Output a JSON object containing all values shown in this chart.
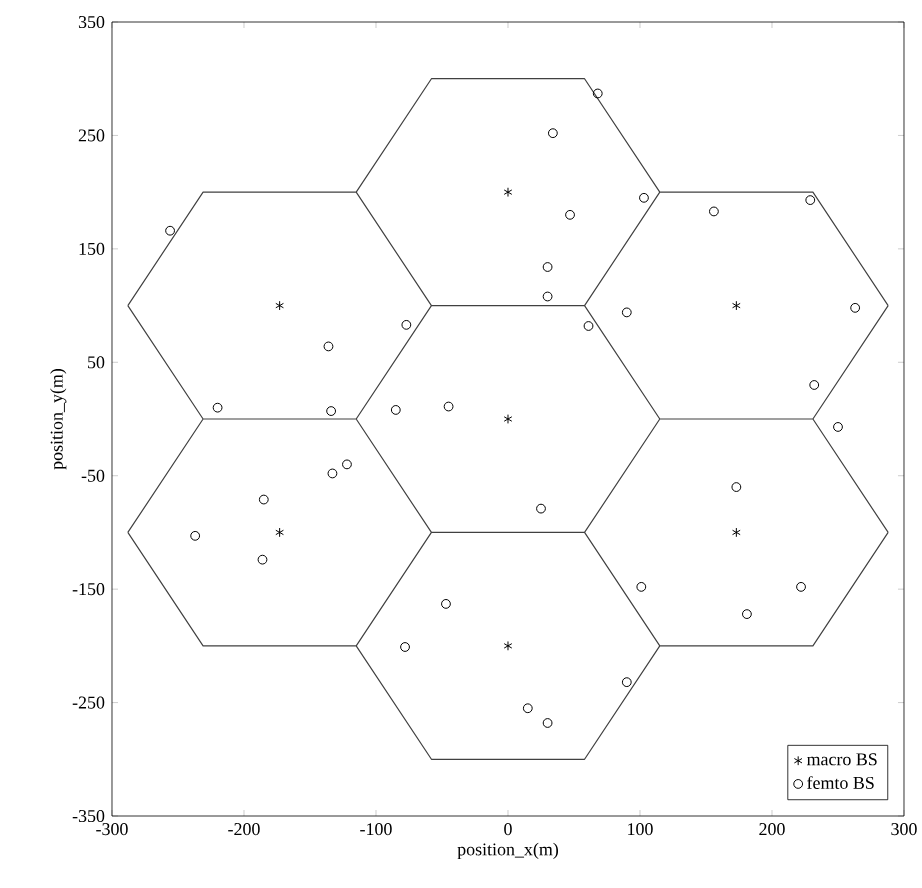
{
  "chart_data": {
    "type": "scatter",
    "xlabel": "position_x(m)",
    "ylabel": "position_y(m)",
    "xlim": [
      -300,
      300
    ],
    "ylim": [
      -350,
      350
    ],
    "xticks": [
      -300,
      -200,
      -100,
      0,
      100,
      200,
      300
    ],
    "yticks": [
      -350,
      -250,
      -150,
      -50,
      50,
      150,
      250,
      350
    ],
    "legend": "bottom right",
    "series": [
      {
        "type": "line",
        "marker": "none",
        "color": "#404040",
        "x": [
          115,
          58,
          -58,
          -115,
          null,
          -115,
          -58,
          58,
          115,
          null,
          115,
          58,
          -58,
          -115,
          null,
          -115,
          -58,
          58,
          115,
          null,
          115,
          58,
          -58,
          -115,
          null,
          -115,
          -58,
          58,
          115,
          null,
          288,
          231,
          115,
          58,
          null,
          58,
          115,
          231,
          288,
          null,
          288,
          231,
          115,
          58,
          null,
          58,
          115,
          231,
          288,
          null,
          -58,
          -115,
          -231,
          -288,
          null,
          -288,
          -231,
          -115,
          -58,
          null,
          -58,
          -115,
          -231,
          -288,
          null,
          -288,
          -231,
          -115,
          -58
        ],
        "values": [
          0,
          100,
          100,
          0,
          null,
          0,
          -100,
          -100,
          0,
          null,
          200,
          300,
          300,
          200,
          null,
          200,
          100,
          100,
          200,
          null,
          -200,
          -100,
          -100,
          -200,
          null,
          -200,
          -300,
          -300,
          -200,
          null,
          100,
          200,
          200,
          100,
          null,
          100,
          0,
          0,
          100,
          null,
          -100,
          0,
          0,
          -100,
          null,
          -100,
          -200,
          -200,
          -100,
          null,
          100,
          200,
          200,
          100,
          null,
          100,
          0,
          0,
          100,
          null,
          -100,
          0,
          0,
          -100,
          null,
          -100,
          -200,
          -200,
          -100
        ]
      },
      {
        "marker": "cross",
        "name": "macro BS",
        "color": "#000000",
        "x": [
          0,
          0,
          0,
          173,
          173,
          -173,
          -173
        ],
        "values": [
          0,
          200,
          -200,
          100,
          -100,
          100,
          -100
        ]
      },
      {
        "marker": "circle",
        "name": "femto BS",
        "color": "#000000",
        "x": [
          68,
          34,
          47,
          30,
          30,
          103,
          156,
          229,
          90,
          61,
          263,
          232,
          250,
          -256,
          -77,
          -136,
          -220,
          -134,
          -85,
          -45,
          -122,
          -133,
          -185,
          -237,
          -186,
          -47,
          -78,
          25,
          173,
          222,
          101,
          181,
          90,
          15,
          30
        ],
        "values": [
          287,
          252,
          180,
          134,
          108,
          195,
          183,
          193,
          94,
          82,
          98,
          30,
          -7,
          166,
          83,
          64,
          10,
          7,
          8,
          11,
          -40,
          -48,
          -71,
          -103,
          -124,
          -163,
          -201,
          -79,
          -60,
          -148,
          -148,
          -172,
          -232,
          -255,
          -268
        ]
      }
    ]
  }
}
